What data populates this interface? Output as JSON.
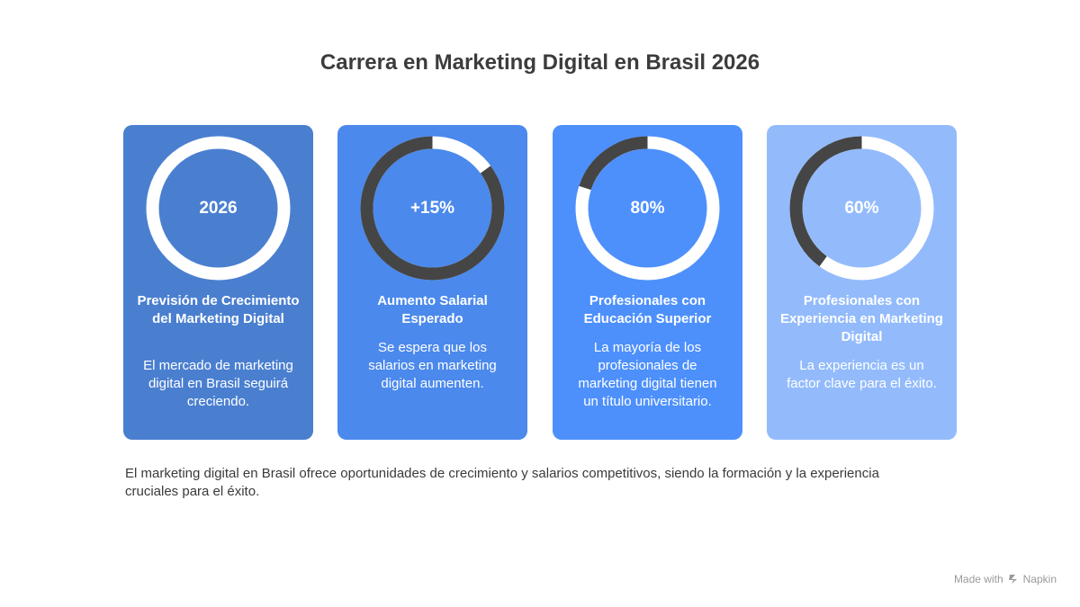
{
  "title": "Carrera en Marketing Digital en Brasil 2026",
  "colors": {
    "track": "#ffffff",
    "progress": "#454545"
  },
  "cards": [
    {
      "value": "2026",
      "progress": 0,
      "color": "#4a7fd0",
      "title": "Previsión de Crecimiento del Marketing Digital",
      "description": "El mercado de marketing digital en Brasil seguirá creciendo."
    },
    {
      "value": "+15%",
      "progress": 0.85,
      "color": "#4b89ec",
      "title": "Aumento Salarial Esperado",
      "description": "Se espera que los salarios en marketing digital aumenten."
    },
    {
      "value": "80%",
      "progress": 0.2,
      "color": "#4d90fc",
      "title": "Profesionales con Educación Superior",
      "description": "La mayoría de los profesionales de marketing digital tienen un título universitario."
    },
    {
      "value": "60%",
      "progress": 0.4,
      "color": "#93bbfc",
      "title": "Profesionales con Experiencia en Marketing Digital",
      "description": "La experiencia es un factor clave para el éxito."
    }
  ],
  "summary": "El marketing digital en Brasil ofrece oportunidades de crecimiento y salarios competitivos, siendo la formación y la experiencia cruciales para el éxito.",
  "footer": {
    "made_with": "Made with",
    "brand": "Napkin",
    "icon": "napkin-logo-icon"
  }
}
